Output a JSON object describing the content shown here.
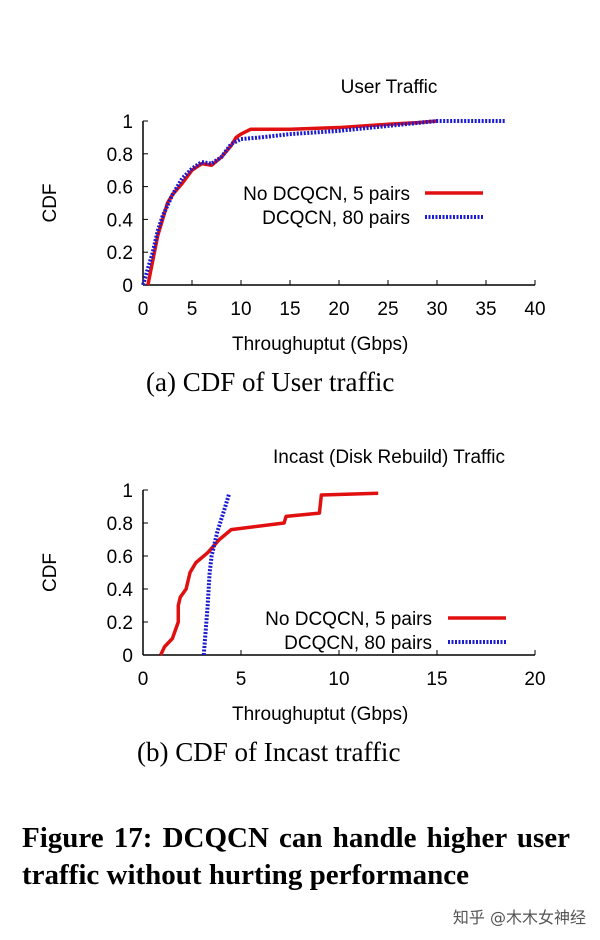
{
  "chart_data": [
    {
      "type": "line",
      "title": "User Traffic",
      "xlabel": "Throughuptut (Gbps)",
      "ylabel": "CDF",
      "xlim": [
        0,
        40
      ],
      "ylim": [
        0,
        1
      ],
      "xticks": [
        0,
        5,
        10,
        15,
        20,
        25,
        30,
        35,
        40
      ],
      "yticks": [
        0,
        0.2,
        0.4,
        0.6,
        0.8,
        1
      ],
      "grid": false,
      "legend": "right",
      "series": [
        {
          "name": "No DCQCN, 5 pairs",
          "color": "#e01010",
          "style": "solid",
          "x": [
            0.5,
            1,
            1.5,
            2,
            2.5,
            3,
            4,
            5,
            6,
            7,
            8,
            9,
            9.5,
            10,
            11,
            15,
            20,
            25,
            28,
            30
          ],
          "y": [
            0,
            0.15,
            0.3,
            0.4,
            0.5,
            0.55,
            0.62,
            0.7,
            0.74,
            0.73,
            0.78,
            0.85,
            0.9,
            0.92,
            0.95,
            0.95,
            0.96,
            0.98,
            0.99,
            1
          ]
        },
        {
          "name": "DCQCN, 80 pairs",
          "color": "#1a1ad0",
          "style": "dotted",
          "x": [
            0,
            1,
            1.5,
            2,
            3,
            4,
            5,
            6,
            7,
            8,
            9,
            10,
            12,
            15,
            20,
            25,
            30,
            37
          ],
          "y": [
            0,
            0.2,
            0.33,
            0.42,
            0.55,
            0.65,
            0.71,
            0.75,
            0.74,
            0.78,
            0.86,
            0.89,
            0.9,
            0.92,
            0.94,
            0.97,
            1,
            1
          ]
        }
      ],
      "caption": "(a)  CDF of User traffic"
    },
    {
      "type": "line",
      "title": "Incast (Disk Rebuild) Traffic",
      "xlabel": "Throughuptut (Gbps)",
      "ylabel": "CDF",
      "xlim": [
        0,
        20
      ],
      "ylim": [
        0,
        1
      ],
      "xticks": [
        0,
        5,
        10,
        15,
        20
      ],
      "yticks": [
        0,
        0.2,
        0.4,
        0.6,
        0.8,
        1
      ],
      "grid": false,
      "legend": "bottom-right",
      "series": [
        {
          "name": "No DCQCN, 5 pairs",
          "color": "#e01010",
          "style": "solid",
          "x": [
            0.9,
            1.1,
            1.5,
            1.8,
            1.8,
            1.9,
            2.2,
            2.4,
            2.7,
            3.3,
            3.9,
            4.5,
            7.2,
            7.3,
            9,
            9.1,
            12
          ],
          "y": [
            0,
            0.05,
            0.1,
            0.2,
            0.3,
            0.35,
            0.4,
            0.5,
            0.56,
            0.62,
            0.7,
            0.76,
            0.8,
            0.84,
            0.86,
            0.97,
            0.98
          ]
        },
        {
          "name": "DCQCN, 80 pairs",
          "color": "#1a1ad0",
          "style": "dotted",
          "x": [
            3.1,
            3.2,
            3.3,
            3.4,
            3.5,
            3.8,
            4.2,
            4.4
          ],
          "y": [
            0,
            0.15,
            0.3,
            0.5,
            0.6,
            0.75,
            0.9,
            0.98
          ]
        }
      ],
      "caption": "(b)  CDF of Incast traffic"
    }
  ],
  "figure_caption": "Figure 17: DCQCN can handle higher user traffic without hurting performance",
  "watermark": "知乎 @木木女神经"
}
